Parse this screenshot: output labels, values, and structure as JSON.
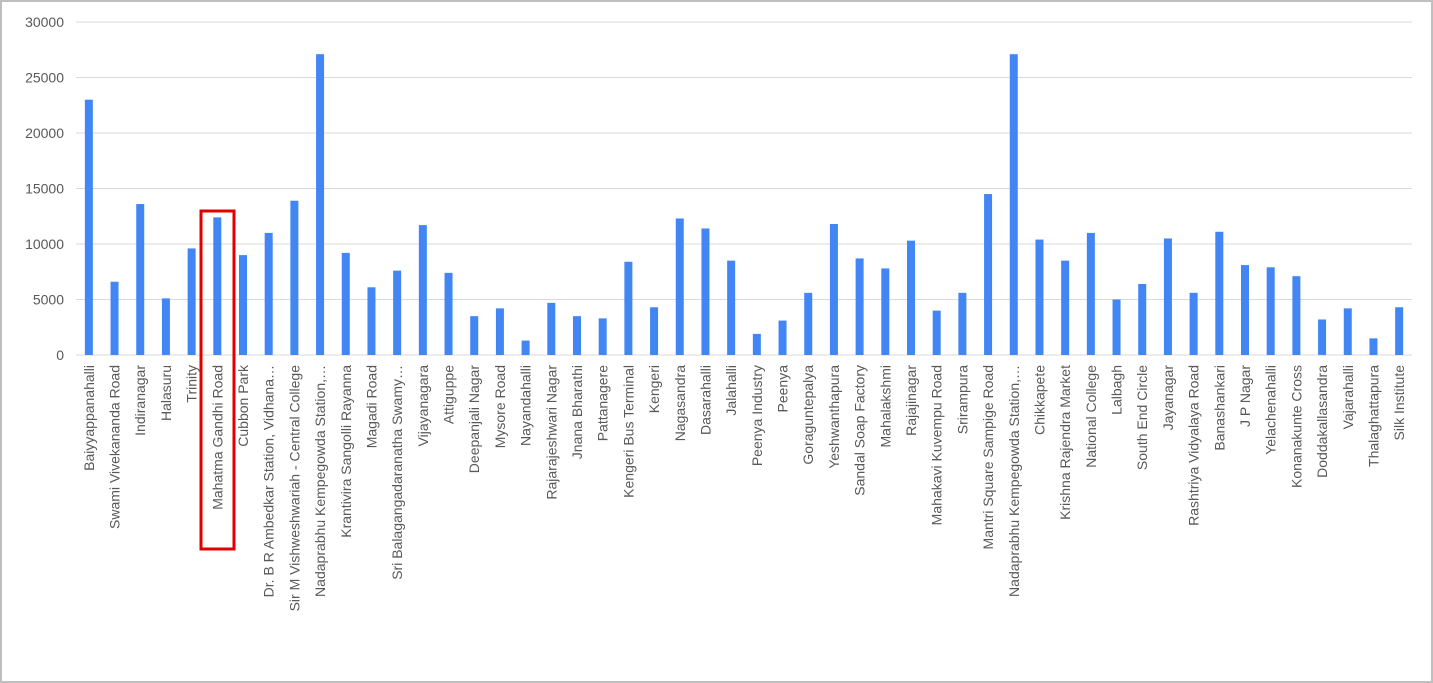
{
  "chart_data": {
    "type": "bar",
    "categories": [
      "Baiyyappanahalli",
      "Swami Vivekananda Road",
      "Indiranagar",
      "Halasuru",
      "Trinity",
      "Mahatma Gandhi Road",
      "Cubbon Park",
      "Dr. B R Ambedkar Station, Vidhana…",
      "Sir M Vishweshwariah - Central College",
      "Nadaprabhu Kempegowda Station,…",
      "Krantivira Sangolli Rayanna",
      "Magadi Road",
      "Sri Balagangadaranatha Swamy…",
      "Vijayanagara",
      "Attiguppe",
      "Deepanjali Nagar",
      "Mysore Road",
      "Nayandahalli",
      "Rajarajeshwari Nagar",
      "Jnana Bharathi",
      "Pattanagere",
      "Kengeri Bus Terminal",
      "Kengeri",
      "Nagasandra",
      "Dasarahalli",
      "Jalahalli",
      "Peenya Industry",
      "Peenya",
      "Goraguntepalya",
      "Yeshwanthapura",
      "Sandal Soap Factory",
      "Mahalakshmi",
      "Rajajinagar",
      "Mahakavi Kuvempu Road",
      "Srirampura",
      "Mantri Square Sampige Road",
      "Nadaprabhu Kempegowda Station,…",
      "Chikkapete",
      "Krishna Rajendra Market",
      "National College",
      "Lalbagh",
      "South End Circle",
      "Jayanagar",
      "Rashtriya Vidyalaya Road",
      "Banashankari",
      "J P Nagar",
      "Yelachenahalli",
      "Konanakunte Cross",
      "Doddakallasandra",
      "Vajarahalli",
      "Thalaghattapura",
      "Silk Institute"
    ],
    "values": [
      23000,
      6600,
      13600,
      5100,
      9600,
      12400,
      9000,
      11000,
      13900,
      27100,
      9200,
      6100,
      7600,
      11700,
      7400,
      3500,
      4200,
      1300,
      4700,
      3500,
      3300,
      8400,
      4300,
      12300,
      11400,
      8500,
      1900,
      3100,
      5600,
      11800,
      8700,
      7800,
      10300,
      4000,
      5600,
      14500,
      27100,
      10400,
      8500,
      11000,
      5000,
      6400,
      10500,
      5600,
      11100,
      8100,
      7900,
      7100,
      3200,
      4200,
      1500,
      4300
    ],
    "color": "#4285f4",
    "ylim": [
      0,
      30000
    ],
    "yticks": [
      0,
      5000,
      10000,
      15000,
      20000,
      25000,
      30000
    ],
    "grid": true
  }
}
